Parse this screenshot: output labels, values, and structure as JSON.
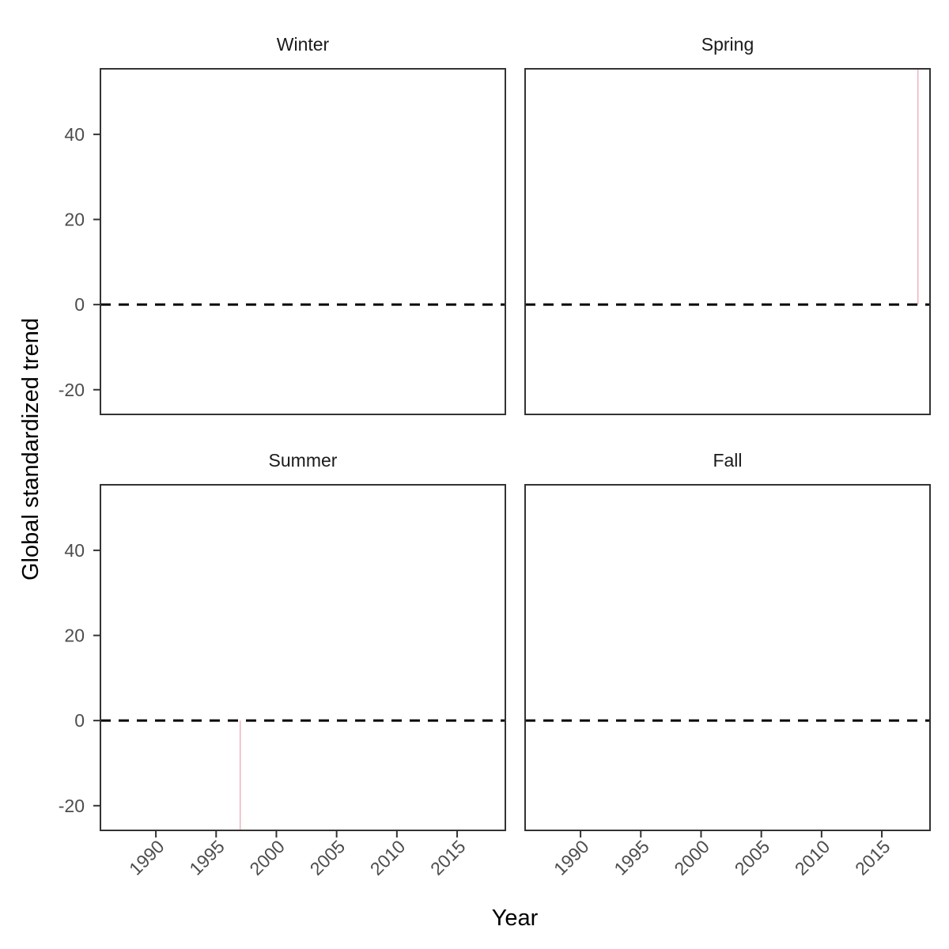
{
  "chart_data": {
    "type": "line",
    "facet_layout": "2x2 grid",
    "xlabel": "Year",
    "ylabel": "Global standardized trend",
    "xlim": [
      1985.4,
      2019.0
    ],
    "ylim": [
      -25.8,
      55.4
    ],
    "x_ticks": [
      1990,
      1995,
      2000,
      2005,
      2010,
      2015
    ],
    "y_ticks": [
      -20,
      0,
      20,
      40
    ],
    "reference_line": {
      "y": 0,
      "style": "dashed",
      "color": "#000000"
    },
    "panels": [
      {
        "name": "Winter",
        "spikes": []
      },
      {
        "name": "Spring",
        "spikes": [
          {
            "x": 2018,
            "y_from": 0,
            "y_to": 55.4,
            "color": "#e8a3ad"
          }
        ]
      },
      {
        "name": "Summer",
        "spikes": [
          {
            "x": 1997,
            "y_from": 0,
            "y_to": -25.8,
            "color": "#e8a3ad"
          }
        ]
      },
      {
        "name": "Fall",
        "spikes": []
      }
    ]
  }
}
